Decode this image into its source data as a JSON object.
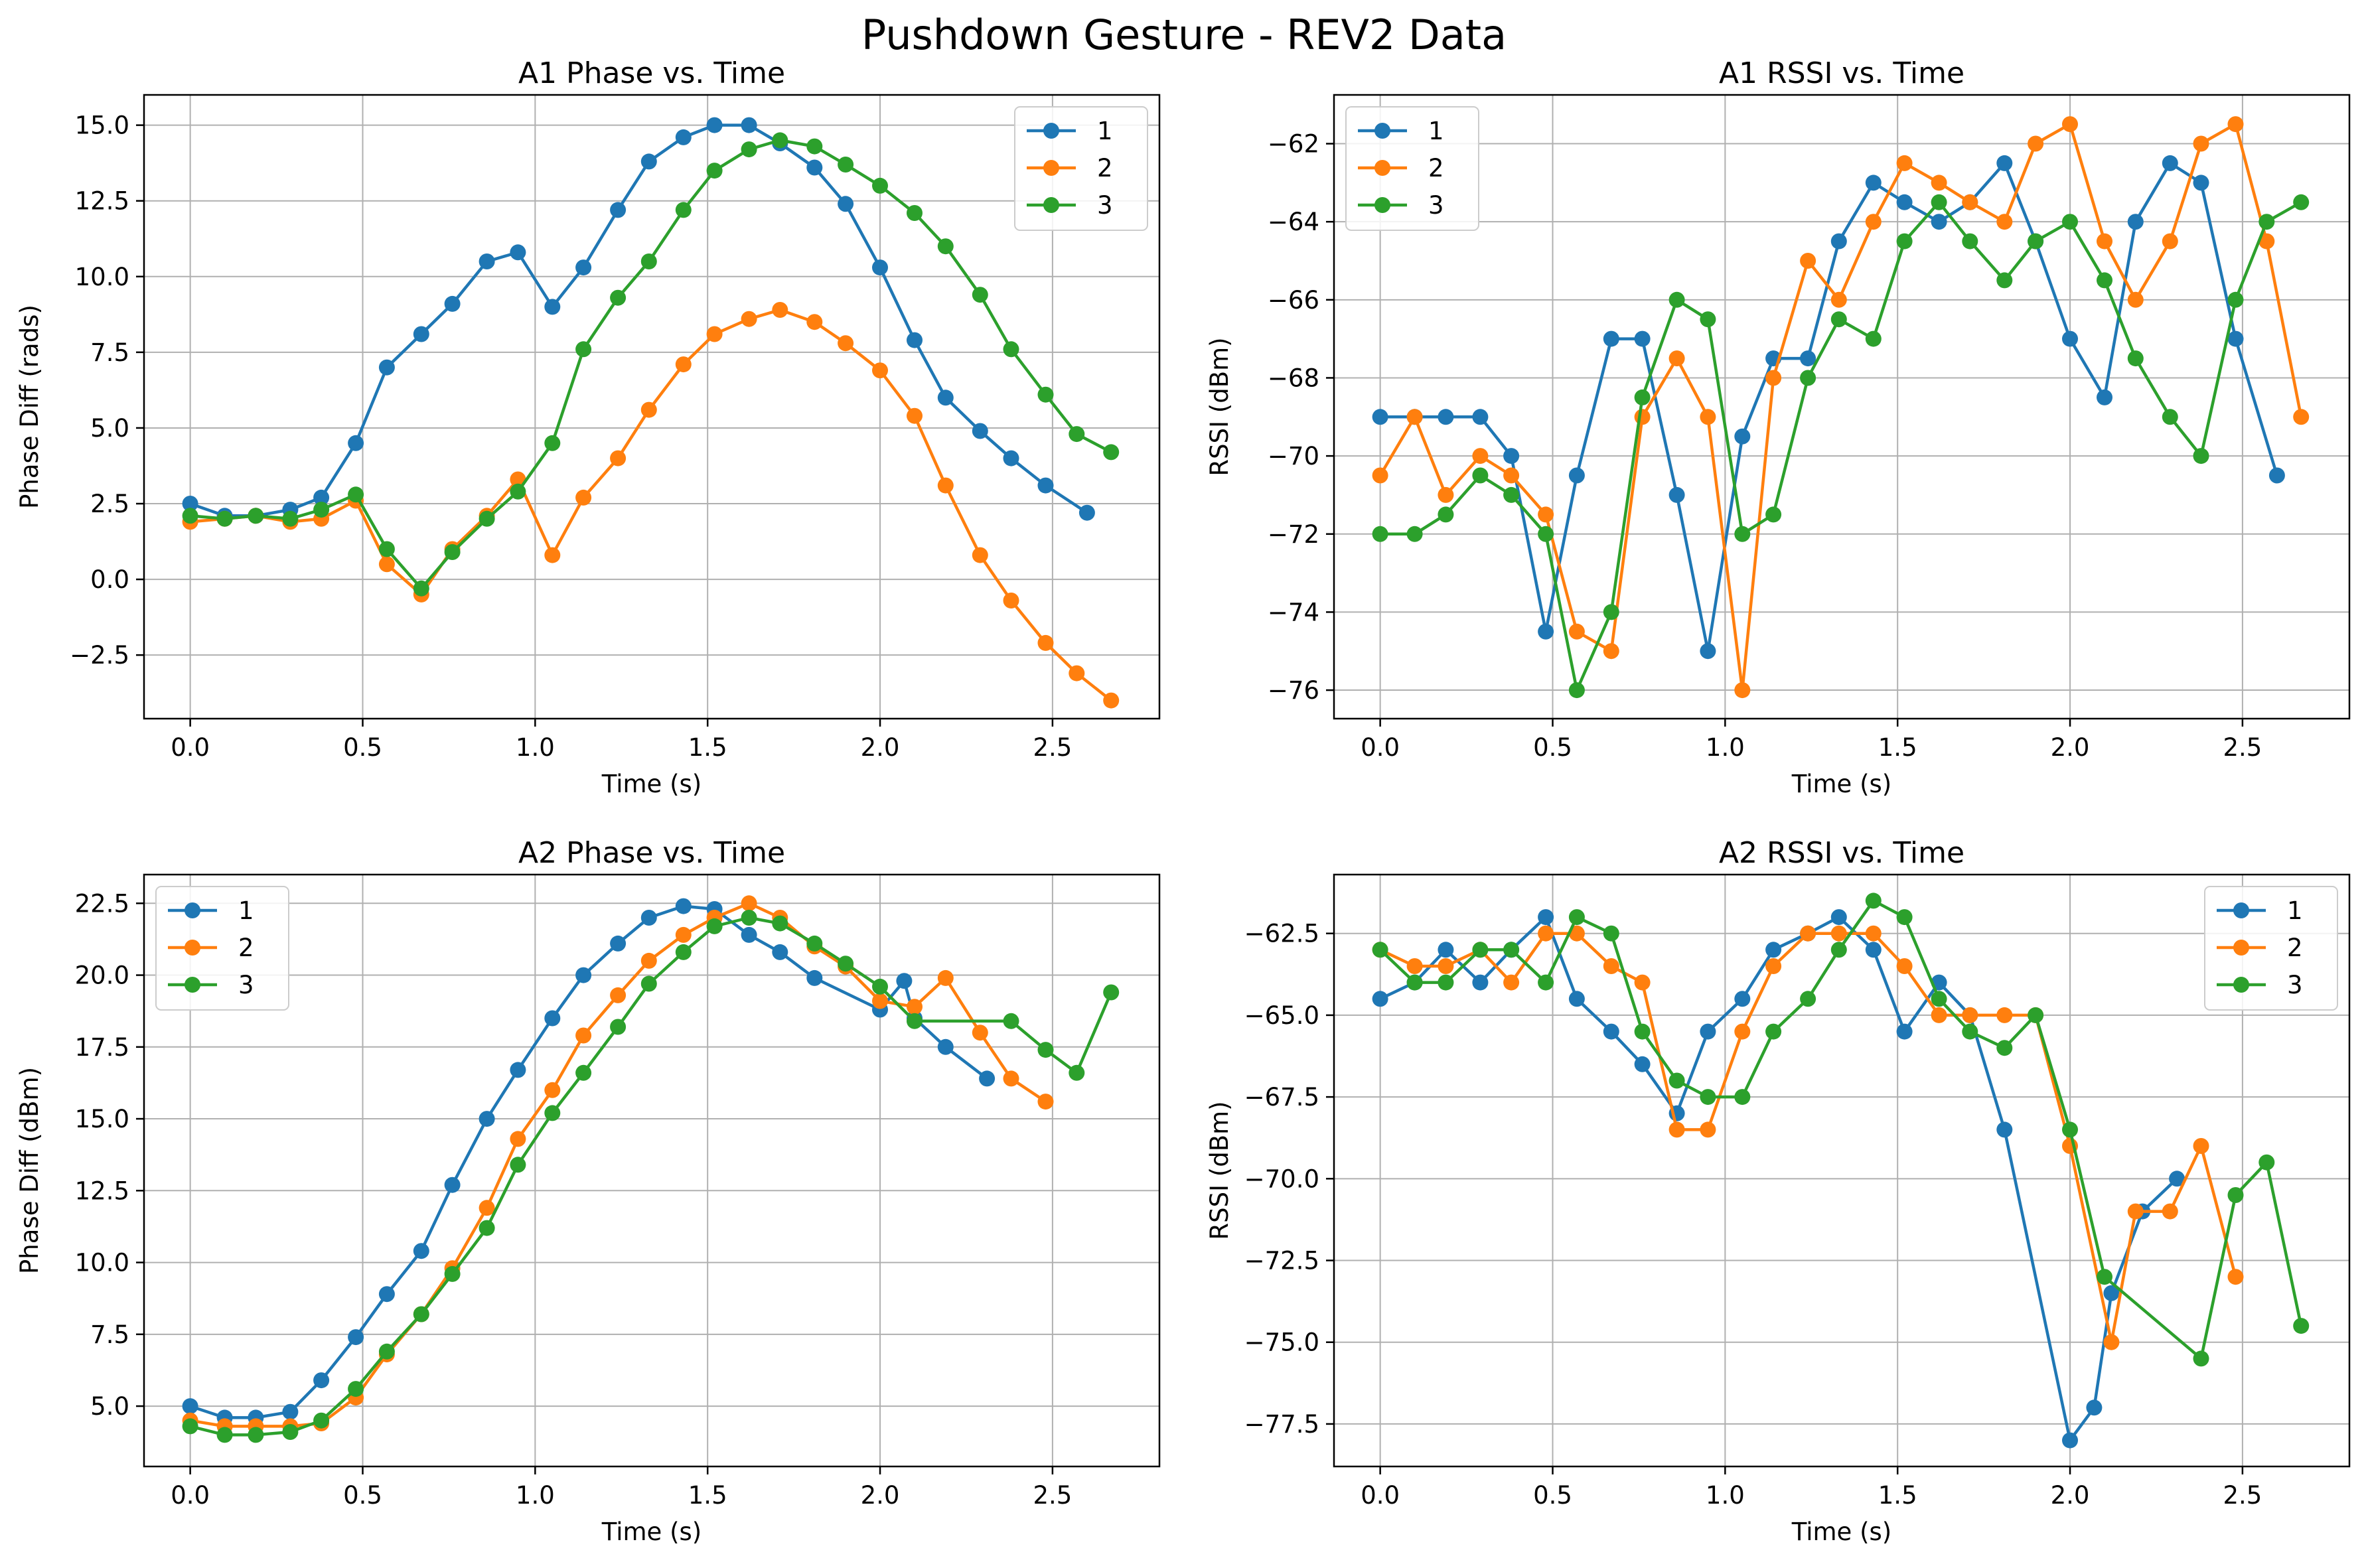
{
  "figure": {
    "title": "Pushdown Gesture - REV2 Data"
  },
  "colors": {
    "series": [
      "#1f77b4",
      "#ff7f0e",
      "#2ca02c"
    ],
    "grid": "#b0b0b0",
    "axes": "#000000"
  },
  "chart_data": [
    {
      "id": "a1-phase",
      "type": "line",
      "title": "A1 Phase vs. Time",
      "xlabel": "Time (s)",
      "ylabel": "Phase Diff (rads)",
      "xlim": [
        -0.134,
        2.81
      ],
      "ylim": [
        -4.6,
        16.0
      ],
      "xticks": [
        0.0,
        0.5,
        1.0,
        1.5,
        2.0,
        2.5
      ],
      "xtick_labels": [
        "0.0",
        "0.5",
        "1.0",
        "1.5",
        "2.0",
        "2.5"
      ],
      "yticks": [
        -2.5,
        0.0,
        2.5,
        5.0,
        7.5,
        10.0,
        12.5,
        15.0
      ],
      "ytick_labels": [
        "−2.5",
        "0.0",
        "2.5",
        "5.0",
        "7.5",
        "10.0",
        "12.5",
        "15.0"
      ],
      "grid": true,
      "legend": "upper right",
      "series": [
        {
          "name": "1",
          "x": [
            0.0,
            0.1,
            0.19,
            0.29,
            0.38,
            0.48,
            0.57,
            0.67,
            0.76,
            0.86,
            0.95,
            1.05,
            1.14,
            1.24,
            1.33,
            1.43,
            1.52,
            1.62,
            1.71,
            1.81,
            1.9,
            2.0,
            2.1,
            2.19,
            2.29,
            2.38,
            2.48,
            2.6
          ],
          "y": [
            2.5,
            2.1,
            2.1,
            2.3,
            2.7,
            4.5,
            7.0,
            8.1,
            9.1,
            10.5,
            10.8,
            9.0,
            10.3,
            12.2,
            13.8,
            14.6,
            15.0,
            15.0,
            14.4,
            13.6,
            12.4,
            10.3,
            7.9,
            6.0,
            4.9,
            4.0,
            3.1,
            2.2
          ]
        },
        {
          "name": "2",
          "x": [
            0.0,
            0.1,
            0.19,
            0.29,
            0.38,
            0.48,
            0.57,
            0.67,
            0.76,
            0.86,
            0.95,
            1.05,
            1.14,
            1.24,
            1.33,
            1.43,
            1.52,
            1.62,
            1.71,
            1.81,
            1.9,
            2.0,
            2.1,
            2.19,
            2.29,
            2.38,
            2.48,
            2.57,
            2.67
          ],
          "y": [
            1.9,
            2.0,
            2.1,
            1.9,
            2.0,
            2.6,
            0.5,
            -0.5,
            1.0,
            2.1,
            3.3,
            0.8,
            2.7,
            4.0,
            5.6,
            7.1,
            8.1,
            8.6,
            8.9,
            8.5,
            7.8,
            6.9,
            5.4,
            3.1,
            0.8,
            -0.7,
            -2.1,
            -3.1,
            -4.0
          ]
        },
        {
          "name": "3",
          "x": [
            0.0,
            0.1,
            0.19,
            0.29,
            0.38,
            0.48,
            0.57,
            0.67,
            0.76,
            0.86,
            0.95,
            1.05,
            1.14,
            1.24,
            1.33,
            1.43,
            1.52,
            1.62,
            1.71,
            1.81,
            1.9,
            2.0,
            2.1,
            2.19,
            2.29,
            2.38,
            2.48,
            2.57,
            2.67
          ],
          "y": [
            2.1,
            2.0,
            2.1,
            2.0,
            2.3,
            2.8,
            1.0,
            -0.3,
            0.9,
            2.0,
            2.9,
            4.5,
            7.6,
            9.3,
            10.5,
            12.2,
            13.5,
            14.2,
            14.5,
            14.3,
            13.7,
            13.0,
            12.1,
            11.0,
            9.4,
            7.6,
            6.1,
            4.8,
            4.2
          ]
        }
      ]
    },
    {
      "id": "a1-rssi",
      "type": "line",
      "title": "A1 RSSI vs. Time",
      "xlabel": "Time (s)",
      "ylabel": "RSSI (dBm)",
      "xlim": [
        -0.134,
        2.81
      ],
      "ylim": [
        -76.73,
        -60.75
      ],
      "xticks": [
        0.0,
        0.5,
        1.0,
        1.5,
        2.0,
        2.5
      ],
      "xtick_labels": [
        "0.0",
        "0.5",
        "1.0",
        "1.5",
        "2.0",
        "2.5"
      ],
      "yticks": [
        -76,
        -74,
        -72,
        -70,
        -68,
        -66,
        -64,
        -62
      ],
      "ytick_labels": [
        "−76",
        "−74",
        "−72",
        "−70",
        "−68",
        "−66",
        "−64",
        "−62"
      ],
      "grid": true,
      "legend": "upper left",
      "series": [
        {
          "name": "1",
          "x": [
            0.0,
            0.1,
            0.19,
            0.29,
            0.38,
            0.48,
            0.57,
            0.67,
            0.76,
            0.86,
            0.95,
            1.05,
            1.14,
            1.24,
            1.33,
            1.43,
            1.52,
            1.62,
            1.71,
            1.81,
            1.9,
            2.0,
            2.1,
            2.19,
            2.29,
            2.38,
            2.48,
            2.6
          ],
          "y": [
            -69,
            -69,
            -69,
            -69,
            -70,
            -74.5,
            -70.5,
            -67,
            -67,
            -71,
            -75,
            -69.5,
            -67.5,
            -67.5,
            -64.5,
            -63,
            -63.5,
            -64,
            -63.5,
            -62.5,
            -64.5,
            -67,
            -68.5,
            -64,
            -62.5,
            -63,
            -67,
            -70.5
          ]
        },
        {
          "name": "2",
          "x": [
            0.0,
            0.1,
            0.19,
            0.29,
            0.38,
            0.48,
            0.57,
            0.67,
            0.76,
            0.86,
            0.95,
            1.05,
            1.14,
            1.24,
            1.33,
            1.43,
            1.52,
            1.62,
            1.71,
            1.81,
            1.9,
            2.0,
            2.1,
            2.19,
            2.29,
            2.38,
            2.48,
            2.57,
            2.67
          ],
          "y": [
            -70.5,
            -69,
            -71,
            -70,
            -70.5,
            -71.5,
            -74.5,
            -75,
            -69,
            -67.5,
            -69,
            -76,
            -68,
            -65,
            -66,
            -64,
            -62.5,
            -63,
            -63.5,
            -64,
            -62,
            -61.5,
            -64.5,
            -66,
            -64.5,
            -62,
            -61.5,
            -64.5,
            -69
          ]
        },
        {
          "name": "3",
          "x": [
            0.0,
            0.1,
            0.19,
            0.29,
            0.38,
            0.48,
            0.57,
            0.67,
            0.76,
            0.86,
            0.95,
            1.05,
            1.14,
            1.24,
            1.33,
            1.43,
            1.52,
            1.62,
            1.71,
            1.81,
            1.9,
            2.0,
            2.1,
            2.19,
            2.29,
            2.38,
            2.48,
            2.57,
            2.67
          ],
          "y": [
            -72,
            -72,
            -71.5,
            -70.5,
            -71,
            -72,
            -76,
            -74,
            -68.5,
            -66,
            -66.5,
            -72,
            -71.5,
            -68,
            -66.5,
            -67,
            -64.5,
            -63.5,
            -64.5,
            -65.5,
            -64.5,
            -64,
            -65.5,
            -67.5,
            -69,
            -70,
            -66,
            -64,
            -63.5
          ]
        }
      ]
    },
    {
      "id": "a2-phase",
      "type": "line",
      "title": "A2 Phase vs. Time",
      "xlabel": "Time (s)",
      "ylabel": "Phase Diff (dBm)",
      "xlim": [
        -0.134,
        2.81
      ],
      "ylim": [
        2.9,
        23.5
      ],
      "xticks": [
        0.0,
        0.5,
        1.0,
        1.5,
        2.0,
        2.5
      ],
      "xtick_labels": [
        "0.0",
        "0.5",
        "1.0",
        "1.5",
        "2.0",
        "2.5"
      ],
      "yticks": [
        5.0,
        7.5,
        10.0,
        12.5,
        15.0,
        17.5,
        20.0,
        22.5
      ],
      "ytick_labels": [
        "5.0",
        "7.5",
        "10.0",
        "12.5",
        "15.0",
        "17.5",
        "20.0",
        "22.5"
      ],
      "grid": true,
      "legend": "upper left",
      "series": [
        {
          "name": "1",
          "x": [
            0.0,
            0.1,
            0.19,
            0.29,
            0.38,
            0.48,
            0.57,
            0.67,
            0.76,
            0.86,
            0.95,
            1.05,
            1.14,
            1.24,
            1.33,
            1.43,
            1.52,
            1.62,
            1.71,
            1.81,
            2.0,
            2.07,
            2.1,
            2.19,
            2.31
          ],
          "y": [
            5.0,
            4.6,
            4.6,
            4.8,
            5.9,
            7.4,
            8.9,
            10.4,
            12.7,
            15.0,
            16.7,
            18.5,
            20.0,
            21.1,
            22.0,
            22.4,
            22.3,
            21.4,
            20.8,
            19.9,
            18.8,
            19.8,
            18.5,
            17.5,
            16.4
          ]
        },
        {
          "name": "2",
          "x": [
            0.0,
            0.1,
            0.19,
            0.29,
            0.38,
            0.48,
            0.57,
            0.67,
            0.76,
            0.86,
            0.95,
            1.05,
            1.14,
            1.24,
            1.33,
            1.43,
            1.52,
            1.62,
            1.71,
            1.81,
            1.9,
            2.0,
            2.1,
            2.19,
            2.29,
            2.38,
            2.48
          ],
          "y": [
            4.5,
            4.3,
            4.3,
            4.3,
            4.4,
            5.3,
            6.8,
            8.2,
            9.8,
            11.9,
            14.3,
            16.0,
            17.9,
            19.3,
            20.5,
            21.4,
            22.0,
            22.5,
            22.0,
            21.0,
            20.3,
            19.1,
            18.9,
            19.9,
            18.0,
            16.4,
            15.6
          ]
        },
        {
          "name": "3",
          "x": [
            0.0,
            0.1,
            0.19,
            0.29,
            0.38,
            0.48,
            0.57,
            0.67,
            0.76,
            0.86,
            0.95,
            1.05,
            1.14,
            1.24,
            1.33,
            1.43,
            1.52,
            1.62,
            1.71,
            1.81,
            1.9,
            2.0,
            2.1,
            2.38,
            2.48,
            2.57,
            2.67
          ],
          "y": [
            4.3,
            4.0,
            4.0,
            4.1,
            4.5,
            5.6,
            6.9,
            8.2,
            9.6,
            11.2,
            13.4,
            15.2,
            16.6,
            18.2,
            19.7,
            20.8,
            21.7,
            22.0,
            21.8,
            21.1,
            20.4,
            19.6,
            18.4,
            18.4,
            17.4,
            16.6,
            19.4
          ]
        }
      ]
    },
    {
      "id": "a2-rssi",
      "type": "line",
      "title": "A2 RSSI vs. Time",
      "xlabel": "Time (s)",
      "ylabel": "RSSI (dBm)",
      "xlim": [
        -0.134,
        2.81
      ],
      "ylim": [
        -78.8,
        -60.7
      ],
      "xticks": [
        0.0,
        0.5,
        1.0,
        1.5,
        2.0,
        2.5
      ],
      "xtick_labels": [
        "0.0",
        "0.5",
        "1.0",
        "1.5",
        "2.0",
        "2.5"
      ],
      "yticks": [
        -77.5,
        -75.0,
        -72.5,
        -70.0,
        -67.5,
        -65.0,
        -62.5
      ],
      "ytick_labels": [
        "−77.5",
        "−75.0",
        "−72.5",
        "−70.0",
        "−67.5",
        "−65.0",
        "−62.5"
      ],
      "grid": true,
      "legend": "upper right",
      "series": [
        {
          "name": "1",
          "x": [
            0.0,
            0.1,
            0.19,
            0.29,
            0.38,
            0.48,
            0.57,
            0.67,
            0.76,
            0.86,
            0.95,
            1.05,
            1.14,
            1.24,
            1.33,
            1.43,
            1.52,
            1.62,
            1.71,
            1.81,
            2.0,
            2.07,
            2.12,
            2.21,
            2.31
          ],
          "y": [
            -64.5,
            -64,
            -63,
            -64,
            -63,
            -62,
            -64.5,
            -65.5,
            -66.5,
            -68,
            -65.5,
            -64.5,
            -63,
            -62.5,
            -62,
            -63,
            -65.5,
            -64,
            -65,
            -68.5,
            -78,
            -77,
            -73.5,
            -71,
            -70
          ]
        },
        {
          "name": "2",
          "x": [
            0.0,
            0.1,
            0.19,
            0.29,
            0.38,
            0.48,
            0.57,
            0.67,
            0.76,
            0.86,
            0.95,
            1.05,
            1.14,
            1.24,
            1.33,
            1.43,
            1.52,
            1.62,
            1.71,
            1.81,
            1.9,
            2.0,
            2.12,
            2.19,
            2.29,
            2.38,
            2.48
          ],
          "y": [
            -63,
            -63.5,
            -63.5,
            -63,
            -64,
            -62.5,
            -62.5,
            -63.5,
            -64,
            -68.5,
            -68.5,
            -65.5,
            -63.5,
            -62.5,
            -62.5,
            -62.5,
            -63.5,
            -65,
            -65,
            -65,
            -65,
            -69,
            -75,
            -71,
            -71,
            -69,
            -73
          ]
        },
        {
          "name": "3",
          "x": [
            0.0,
            0.1,
            0.19,
            0.29,
            0.38,
            0.48,
            0.57,
            0.67,
            0.76,
            0.86,
            0.95,
            1.05,
            1.14,
            1.24,
            1.33,
            1.43,
            1.52,
            1.62,
            1.71,
            1.81,
            1.9,
            2.0,
            2.1,
            2.38,
            2.48,
            2.57,
            2.67
          ],
          "y": [
            -63,
            -64,
            -64,
            -63,
            -63,
            -64,
            -62,
            -62.5,
            -65.5,
            -67,
            -67.5,
            -67.5,
            -65.5,
            -64.5,
            -63,
            -61.5,
            -62,
            -64.5,
            -65.5,
            -66,
            -65,
            -68.5,
            -73,
            -75.5,
            -70.5,
            -69.5,
            -74.5
          ]
        }
      ]
    }
  ]
}
